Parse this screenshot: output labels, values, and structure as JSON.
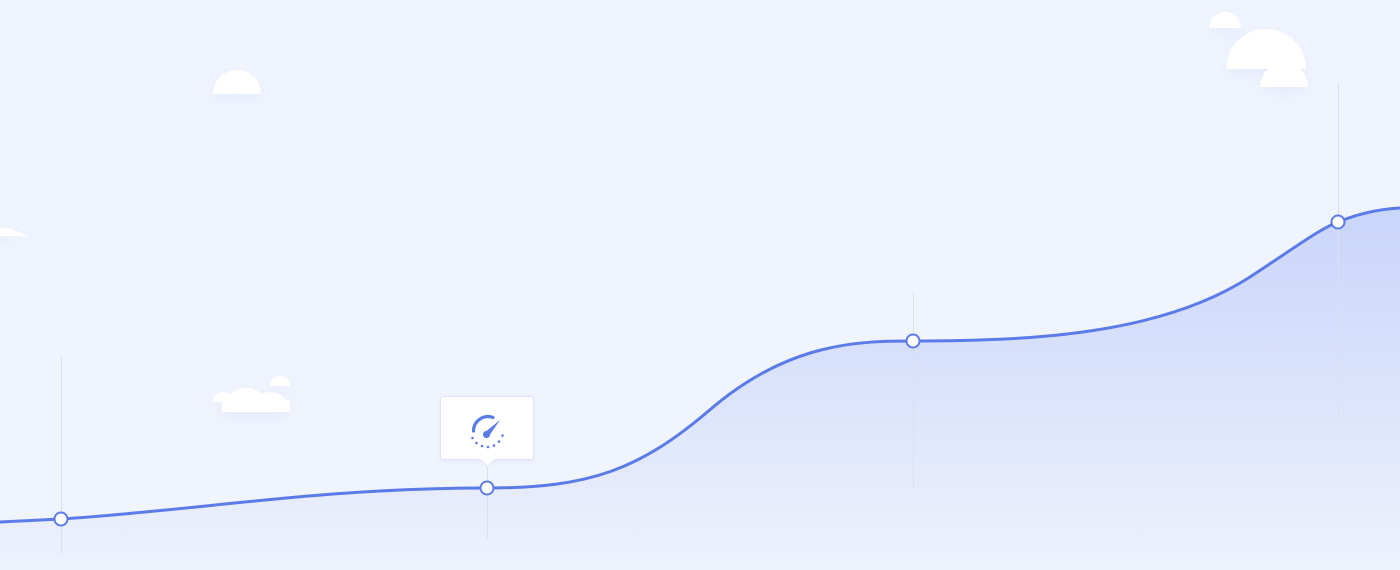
{
  "colors": {
    "background": "#f0f4fd",
    "line": "#5b7ce8",
    "area_top": "#c9d5fa",
    "area_bottom": "#eef2fd",
    "cloud": "#ffffff",
    "guide": "#d9e0f0",
    "point_fill": "#ffffff"
  },
  "chart": {
    "type": "area",
    "points_count": 4,
    "marker_style": "hollow-circle"
  },
  "tooltip": {
    "icon": "speedometer-icon"
  },
  "decorations": {
    "clouds_count": 7
  }
}
